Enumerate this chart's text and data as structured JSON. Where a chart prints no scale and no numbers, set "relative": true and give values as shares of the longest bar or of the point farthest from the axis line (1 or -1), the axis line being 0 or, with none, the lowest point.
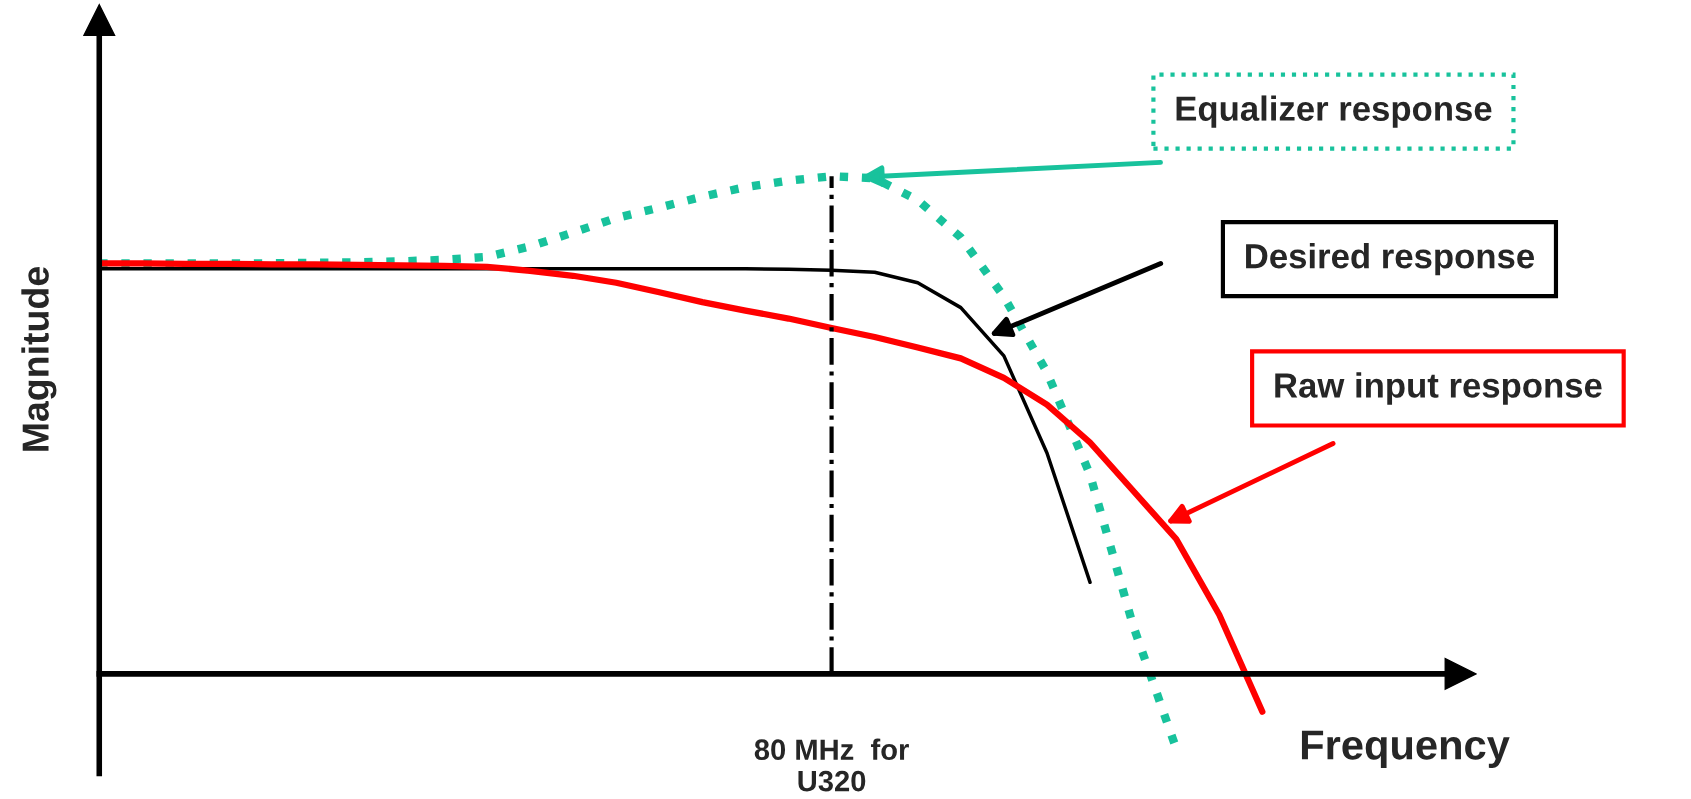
{
  "chart_data": {
    "type": "line",
    "relative": true,
    "xlabel": "Frequency",
    "ylabel": "Magnitude",
    "categories": [
      null,
      null,
      null,
      null,
      null,
      null,
      null,
      null,
      null,
      null,
      null,
      null,
      null,
      null,
      null,
      null,
      null,
      null,
      null,
      null,
      null,
      null,
      null,
      null,
      null,
      null,
      null,
      null,
      null,
      null,
      null,
      null
    ],
    "series": [
      {
        "name": "Equalizer response",
        "color": "#18c29c",
        "line_style": "dotted",
        "values": [
          0.825,
          0.825,
          0.825,
          0.825,
          0.825,
          0.826,
          0.827,
          0.829,
          0.832,
          0.838,
          0.859,
          0.887,
          0.916,
          0.937,
          0.959,
          0.978,
          0.991,
          1.0,
          0.996,
          0.952,
          0.877,
          0.758,
          0.606,
          0.4,
          0.097,
          -0.15,
          null,
          null,
          null,
          null,
          null,
          null
        ]
      },
      {
        "name": "Desired response",
        "color": "#000000",
        "line_style": "solid",
        "values": [
          0.814,
          0.814,
          0.814,
          0.814,
          0.814,
          0.814,
          0.814,
          0.814,
          0.814,
          0.814,
          0.814,
          0.814,
          0.814,
          0.814,
          0.814,
          0.814,
          0.813,
          0.811,
          0.807,
          0.786,
          0.736,
          0.639,
          0.444,
          0.184,
          null,
          null,
          null,
          null,
          null,
          null,
          null,
          null
        ]
      },
      {
        "name": "Raw input response",
        "color": "#ff0000",
        "line_style": "solid",
        "values": [
          0.825,
          0.825,
          0.824,
          0.824,
          0.823,
          0.823,
          0.822,
          0.821,
          0.82,
          0.818,
          0.81,
          0.8,
          0.786,
          0.767,
          0.747,
          0.73,
          0.714,
          0.695,
          0.677,
          0.656,
          0.634,
          0.595,
          0.541,
          0.465,
          0.368,
          0.271,
          0.119,
          -0.076,
          null,
          null,
          null,
          null
        ]
      }
    ],
    "annotations": [
      "80 MHz  for\nU320"
    ],
    "legend": false
  }
}
